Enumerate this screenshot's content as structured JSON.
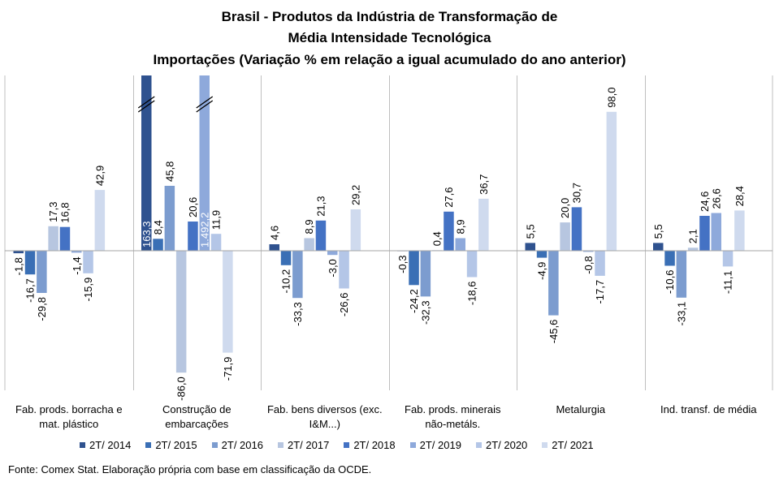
{
  "title_lines": [
    "Brasil - Produtos da Indústria de Transformação de",
    "Média Intensidade Tecnológica",
    "Importações (Variação % em relação a igual acumulado do ano anterior)"
  ],
  "source": "Fonte: Comex Stat. Elaboração própria com base em classificação da OCDE.",
  "chart_data": {
    "type": "bar",
    "categories": [
      "Fab. prods. borracha e mat. plástico",
      "Construção de embarcações",
      "Fab. bens diversos (exc. I&M...)",
      "Fab. prods. minerais não-metáls.",
      "Metalurgia",
      "Ind. transf. de média"
    ],
    "category_label_lines": [
      [
        "Fab. prods. borracha e",
        "mat. plástico"
      ],
      [
        "Construção de",
        "embarcações"
      ],
      [
        "Fab. bens diversos (exc.",
        "I&M...)"
      ],
      [
        "Fab. prods. minerais",
        "não-metáls."
      ],
      [
        "Metalurgia"
      ],
      [
        "Ind. transf. de média"
      ]
    ],
    "series": [
      {
        "name": "2T/ 2014",
        "color": "#2F528F",
        "values": [
          -1.8,
          163.3,
          4.6,
          -0.3,
          5.5,
          5.5
        ],
        "labels": [
          "-1,8",
          "163,3",
          "4,6",
          "-0,3",
          "5,5",
          "5,5"
        ]
      },
      {
        "name": "2T/ 2015",
        "color": "#3A6FB5",
        "values": [
          -16.7,
          8.4,
          -10.2,
          -24.2,
          -4.9,
          -10.6
        ],
        "labels": [
          "-16,7",
          "8,4",
          "-10,2",
          "-24,2",
          "-4,9",
          "-10,6"
        ]
      },
      {
        "name": "2T/ 2016",
        "color": "#7C9CCF",
        "values": [
          -29.8,
          45.8,
          -33.3,
          -32.3,
          -45.6,
          -33.1
        ],
        "labels": [
          "-29,8",
          "45,8",
          "-33,3",
          "-32,3",
          "-45,6",
          "-33,1"
        ]
      },
      {
        "name": "2T/ 2017",
        "color": "#B7C6E0",
        "values": [
          17.3,
          -86.0,
          8.9,
          0.4,
          20.0,
          2.1
        ],
        "labels": [
          "17,3",
          "-86,0",
          "8,9",
          "0,4",
          "20,0",
          "2,1"
        ]
      },
      {
        "name": "2T/ 2018",
        "color": "#4472C4",
        "values": [
          16.8,
          20.6,
          21.3,
          27.6,
          30.7,
          24.6
        ],
        "labels": [
          "16,8",
          "20,6",
          "21,3",
          "27,6",
          "30,7",
          "24,6"
        ]
      },
      {
        "name": "2T/ 2019",
        "color": "#8EA9DB",
        "values": [
          -1.4,
          1492.2,
          -3.0,
          8.9,
          -0.8,
          26.6
        ],
        "labels": [
          "-1,4",
          "1.492,2",
          "-3,0",
          "8,9",
          "-0,8",
          "26,6"
        ]
      },
      {
        "name": "2T/ 2020",
        "color": "#B4C6E7",
        "values": [
          -15.9,
          11.9,
          -26.6,
          -18.6,
          -17.7,
          -11.1
        ],
        "labels": [
          "-15,9",
          "11,9",
          "-26,6",
          "-18,6",
          "-17,7",
          "-11,1"
        ]
      },
      {
        "name": "2T/ 2021",
        "color": "#CFDAEE",
        "values": [
          42.9,
          -71.9,
          29.2,
          36.7,
          98.0,
          28.4
        ],
        "labels": [
          "42,9",
          "-71,9",
          "29,2",
          "36,7",
          "98,0",
          "28,4"
        ]
      }
    ],
    "ylim": [
      -90,
      100
    ],
    "axis_break": true,
    "data_labels_rotated": true,
    "grid": false,
    "legend_position": "bottom"
  }
}
